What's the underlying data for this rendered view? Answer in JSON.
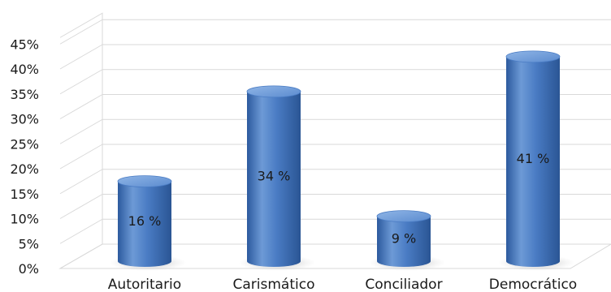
{
  "chart_data": {
    "type": "bar",
    "style": "3d-cylinder",
    "categories": [
      "Autoritario",
      "Carismático",
      "Conciliador",
      "Democrático"
    ],
    "values": [
      16,
      34,
      9,
      41
    ],
    "data_labels": [
      "16 %",
      "34 %",
      "9 %",
      "41 %"
    ],
    "yticks": [
      "0%",
      "5%",
      "10%",
      "15%",
      "20%",
      "25%",
      "30%",
      "35%",
      "40%",
      "45%"
    ],
    "ylim": [
      0,
      45
    ],
    "title": "",
    "xlabel": "",
    "ylabel": "",
    "grid": true,
    "legend": "none",
    "bar_color": "#4a7cc4"
  }
}
